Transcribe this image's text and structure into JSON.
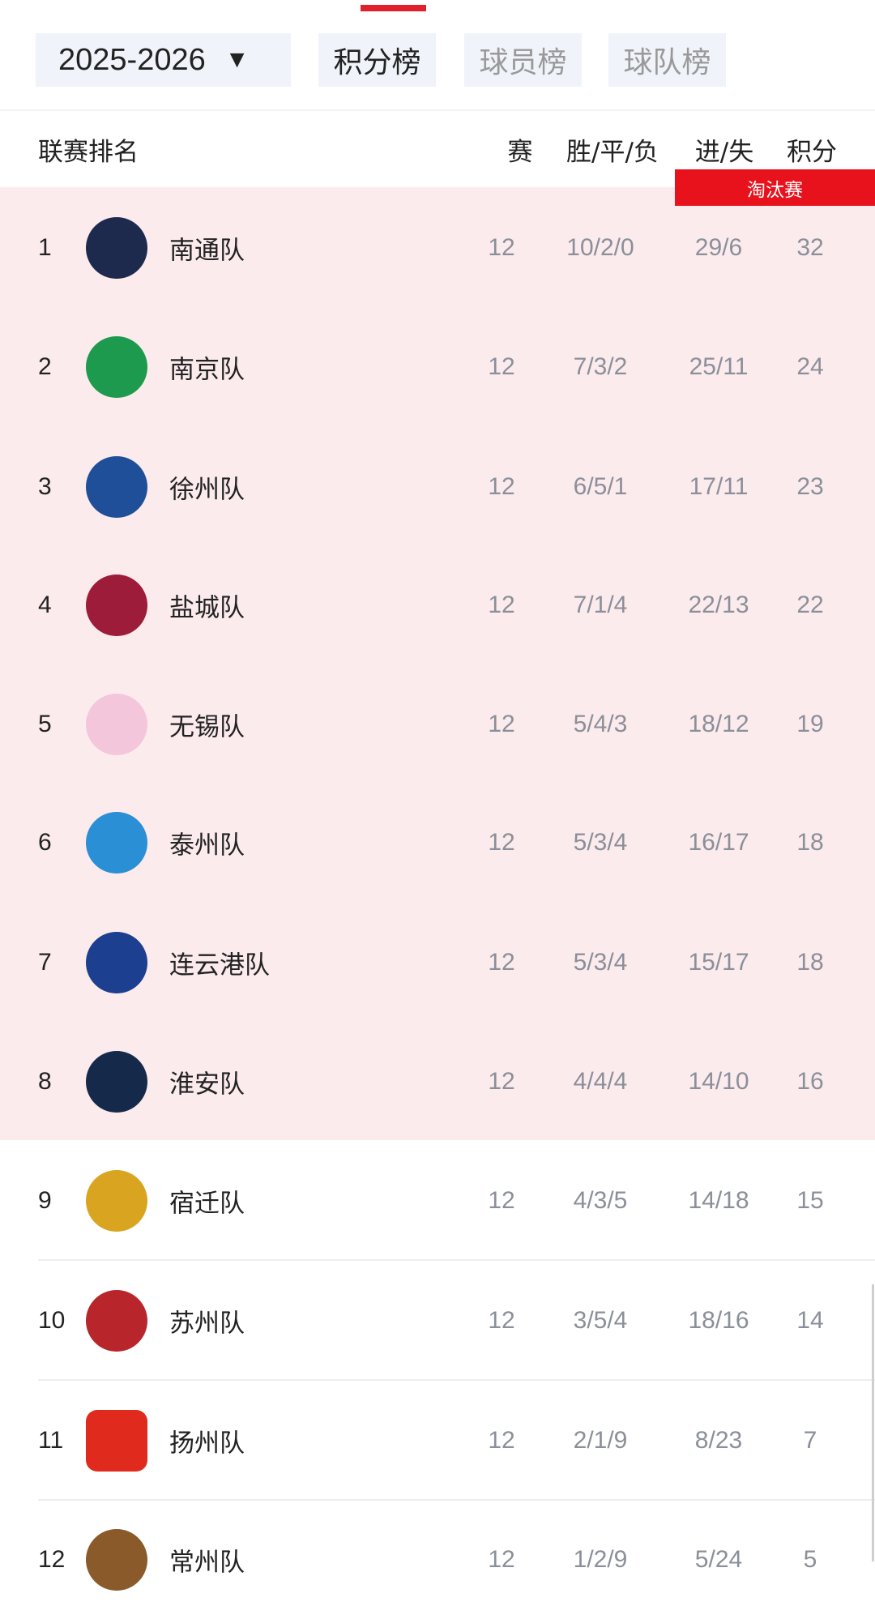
{
  "tabs": {
    "season": "2025-2026",
    "season_arrow": "▼",
    "items": [
      {
        "label": "积分榜",
        "active": true
      },
      {
        "label": "球员榜",
        "active": false
      },
      {
        "label": "球队榜",
        "active": false
      }
    ]
  },
  "header": {
    "title": "联赛排名",
    "played": "赛",
    "wdl": "胜/平/负",
    "goals": "进/失",
    "points": "积分"
  },
  "badge": "淘汰赛",
  "colors": {
    "accent": "#e8121d",
    "highlight_bg": "#fcebed"
  },
  "teams": [
    {
      "rank": "1",
      "name": "南通队",
      "played": "12",
      "wdl": "10/2/0",
      "goals": "29/6",
      "points": "32",
      "logo_color": "#1d2a4d"
    },
    {
      "rank": "2",
      "name": "南京队",
      "played": "12",
      "wdl": "7/3/2",
      "goals": "25/11",
      "points": "24",
      "logo_color": "#1d9a4d"
    },
    {
      "rank": "3",
      "name": "徐州队",
      "played": "12",
      "wdl": "6/5/1",
      "goals": "17/11",
      "points": "23",
      "logo_color": "#1f4f99"
    },
    {
      "rank": "4",
      "name": "盐城队",
      "played": "12",
      "wdl": "7/1/4",
      "goals": "22/13",
      "points": "22",
      "logo_color": "#9c1c3a"
    },
    {
      "rank": "5",
      "name": "无锡队",
      "played": "12",
      "wdl": "5/4/3",
      "goals": "18/12",
      "points": "19",
      "logo_color": "#f4c6dc"
    },
    {
      "rank": "6",
      "name": "泰州队",
      "played": "12",
      "wdl": "5/3/4",
      "goals": "16/17",
      "points": "18",
      "logo_color": "#2b8fd6"
    },
    {
      "rank": "7",
      "name": "连云港队",
      "played": "12",
      "wdl": "5/3/4",
      "goals": "15/17",
      "points": "18",
      "logo_color": "#1d3f8f"
    },
    {
      "rank": "8",
      "name": "淮安队",
      "played": "12",
      "wdl": "4/4/4",
      "goals": "14/10",
      "points": "16",
      "logo_color": "#152a4a"
    },
    {
      "rank": "9",
      "name": "宿迁队",
      "played": "12",
      "wdl": "4/3/5",
      "goals": "14/18",
      "points": "15",
      "logo_color": "#d9a520"
    },
    {
      "rank": "10",
      "name": "苏州队",
      "played": "12",
      "wdl": "3/5/4",
      "goals": "18/16",
      "points": "14",
      "logo_color": "#b8262c"
    },
    {
      "rank": "11",
      "name": "扬州队",
      "played": "12",
      "wdl": "2/1/9",
      "goals": "8/23",
      "points": "7",
      "logo_color": "#e12a1e"
    },
    {
      "rank": "12",
      "name": "常州队",
      "played": "12",
      "wdl": "1/2/9",
      "goals": "5/24",
      "points": "5",
      "logo_color": "#8a5a2b"
    }
  ]
}
